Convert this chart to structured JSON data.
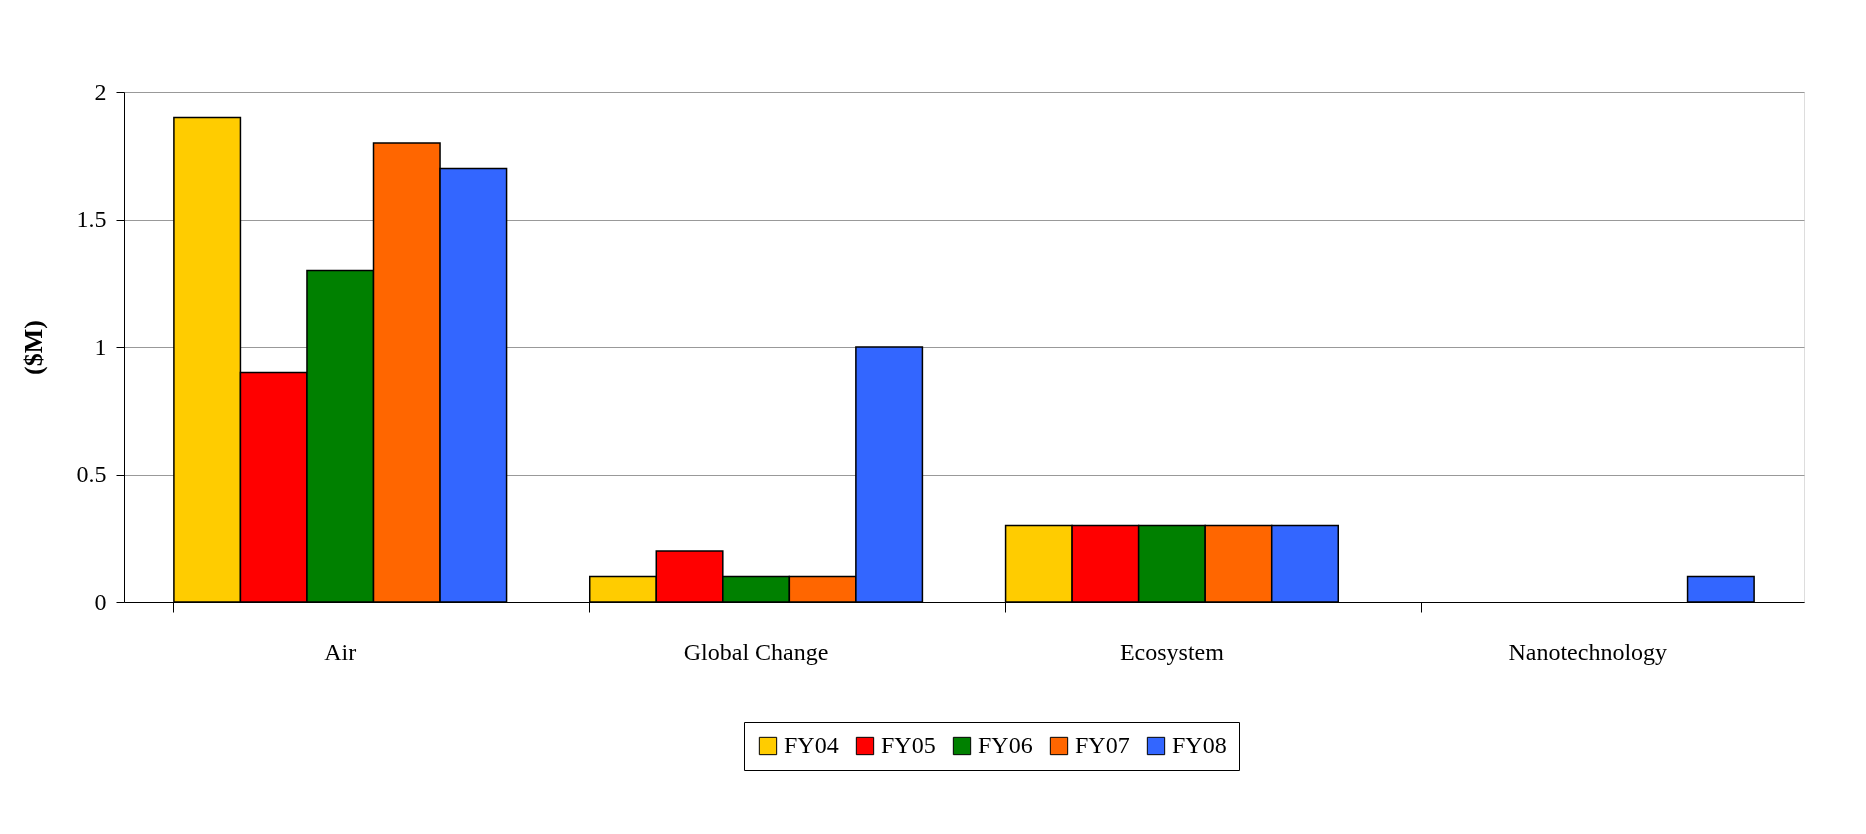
{
  "chart_data": {
    "type": "bar",
    "ylabel": "($M)",
    "categories": [
      "Air",
      "Global Change",
      "Ecosystem",
      "Nanotechnology"
    ],
    "series": [
      {
        "name": "FY04",
        "color": "#ffcc00",
        "values": [
          1.9,
          0.1,
          0.3,
          null
        ]
      },
      {
        "name": "FY05",
        "color": "#ff0000",
        "values": [
          0.9,
          0.2,
          0.3,
          null
        ]
      },
      {
        "name": "FY06",
        "color": "#008000",
        "values": [
          1.3,
          0.1,
          0.3,
          null
        ]
      },
      {
        "name": "FY07",
        "color": "#ff6600",
        "values": [
          1.8,
          0.1,
          0.3,
          null
        ]
      },
      {
        "name": "FY08",
        "color": "#3366ff",
        "values": [
          1.7,
          1.0,
          0.3,
          0.1
        ]
      }
    ],
    "ylim": [
      0,
      2
    ],
    "yticks": [
      0,
      0.5,
      1,
      1.5,
      2
    ],
    "grid": "y",
    "legend": "bottom"
  }
}
